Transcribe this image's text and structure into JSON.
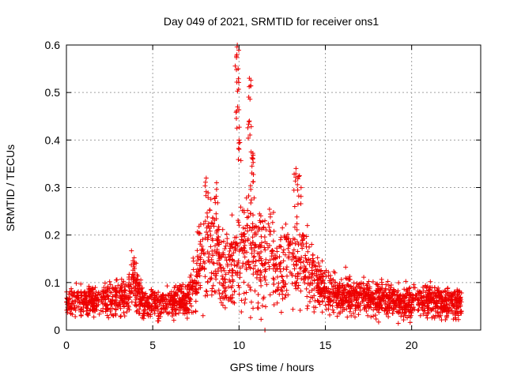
{
  "chart_data": {
    "type": "scatter",
    "title": "Day 049 of 2021, SRMTID for receiver ons1",
    "xlabel": "GPS time / hours",
    "ylabel": "SRMTID / TECUs",
    "xlim": [
      0,
      24
    ],
    "ylim": [
      0,
      0.6
    ],
    "x_ticks": [
      0,
      5,
      10,
      15,
      20
    ],
    "y_ticks": [
      0,
      0.1,
      0.2,
      0.3,
      0.4,
      0.5,
      0.6
    ],
    "x_tick_labels": [
      "0",
      "5",
      "10",
      "15",
      "20"
    ],
    "y_tick_labels": [
      "0",
      "0.1",
      "0.2",
      "0.3",
      "0.4",
      "0.5",
      "0.6"
    ],
    "grid": true,
    "marker": "+",
    "color": "#ee0000",
    "series": [
      {
        "name": "SRMTID",
        "x_range": [
          0,
          22.9
        ],
        "profile": [
          {
            "x": 0.0,
            "y": 0.06
          },
          {
            "x": 2.0,
            "y": 0.06
          },
          {
            "x": 3.5,
            "y": 0.07
          },
          {
            "x": 3.8,
            "y": 0.11
          },
          {
            "x": 4.5,
            "y": 0.05
          },
          {
            "x": 6.0,
            "y": 0.06
          },
          {
            "x": 7.0,
            "y": 0.06
          },
          {
            "x": 7.5,
            "y": 0.11
          },
          {
            "x": 8.0,
            "y": 0.17
          },
          {
            "x": 8.5,
            "y": 0.18
          },
          {
            "x": 9.0,
            "y": 0.13
          },
          {
            "x": 9.5,
            "y": 0.12
          },
          {
            "x": 10.0,
            "y": 0.16
          },
          {
            "x": 10.5,
            "y": 0.19
          },
          {
            "x": 11.0,
            "y": 0.15
          },
          {
            "x": 11.5,
            "y": 0.15
          },
          {
            "x": 12.0,
            "y": 0.14
          },
          {
            "x": 12.5,
            "y": 0.13
          },
          {
            "x": 13.0,
            "y": 0.15
          },
          {
            "x": 13.5,
            "y": 0.16
          },
          {
            "x": 14.0,
            "y": 0.12
          },
          {
            "x": 15.0,
            "y": 0.08
          },
          {
            "x": 17.0,
            "y": 0.07
          },
          {
            "x": 19.0,
            "y": 0.06
          },
          {
            "x": 21.0,
            "y": 0.06
          },
          {
            "x": 22.9,
            "y": 0.06
          }
        ],
        "peaks": [
          {
            "x": 8.1,
            "y": 0.32
          },
          {
            "x": 8.7,
            "y": 0.31
          },
          {
            "x": 9.9,
            "y": 0.6
          },
          {
            "x": 9.95,
            "y": 0.55
          },
          {
            "x": 9.92,
            "y": 0.47
          },
          {
            "x": 10.0,
            "y": 0.4
          },
          {
            "x": 10.6,
            "y": 0.53
          },
          {
            "x": 10.6,
            "y": 0.44
          },
          {
            "x": 10.7,
            "y": 0.375
          },
          {
            "x": 10.75,
            "y": 0.345
          },
          {
            "x": 13.3,
            "y": 0.34
          },
          {
            "x": 13.5,
            "y": 0.325
          },
          {
            "x": 11.5,
            "y": 0.0
          }
        ]
      }
    ]
  }
}
